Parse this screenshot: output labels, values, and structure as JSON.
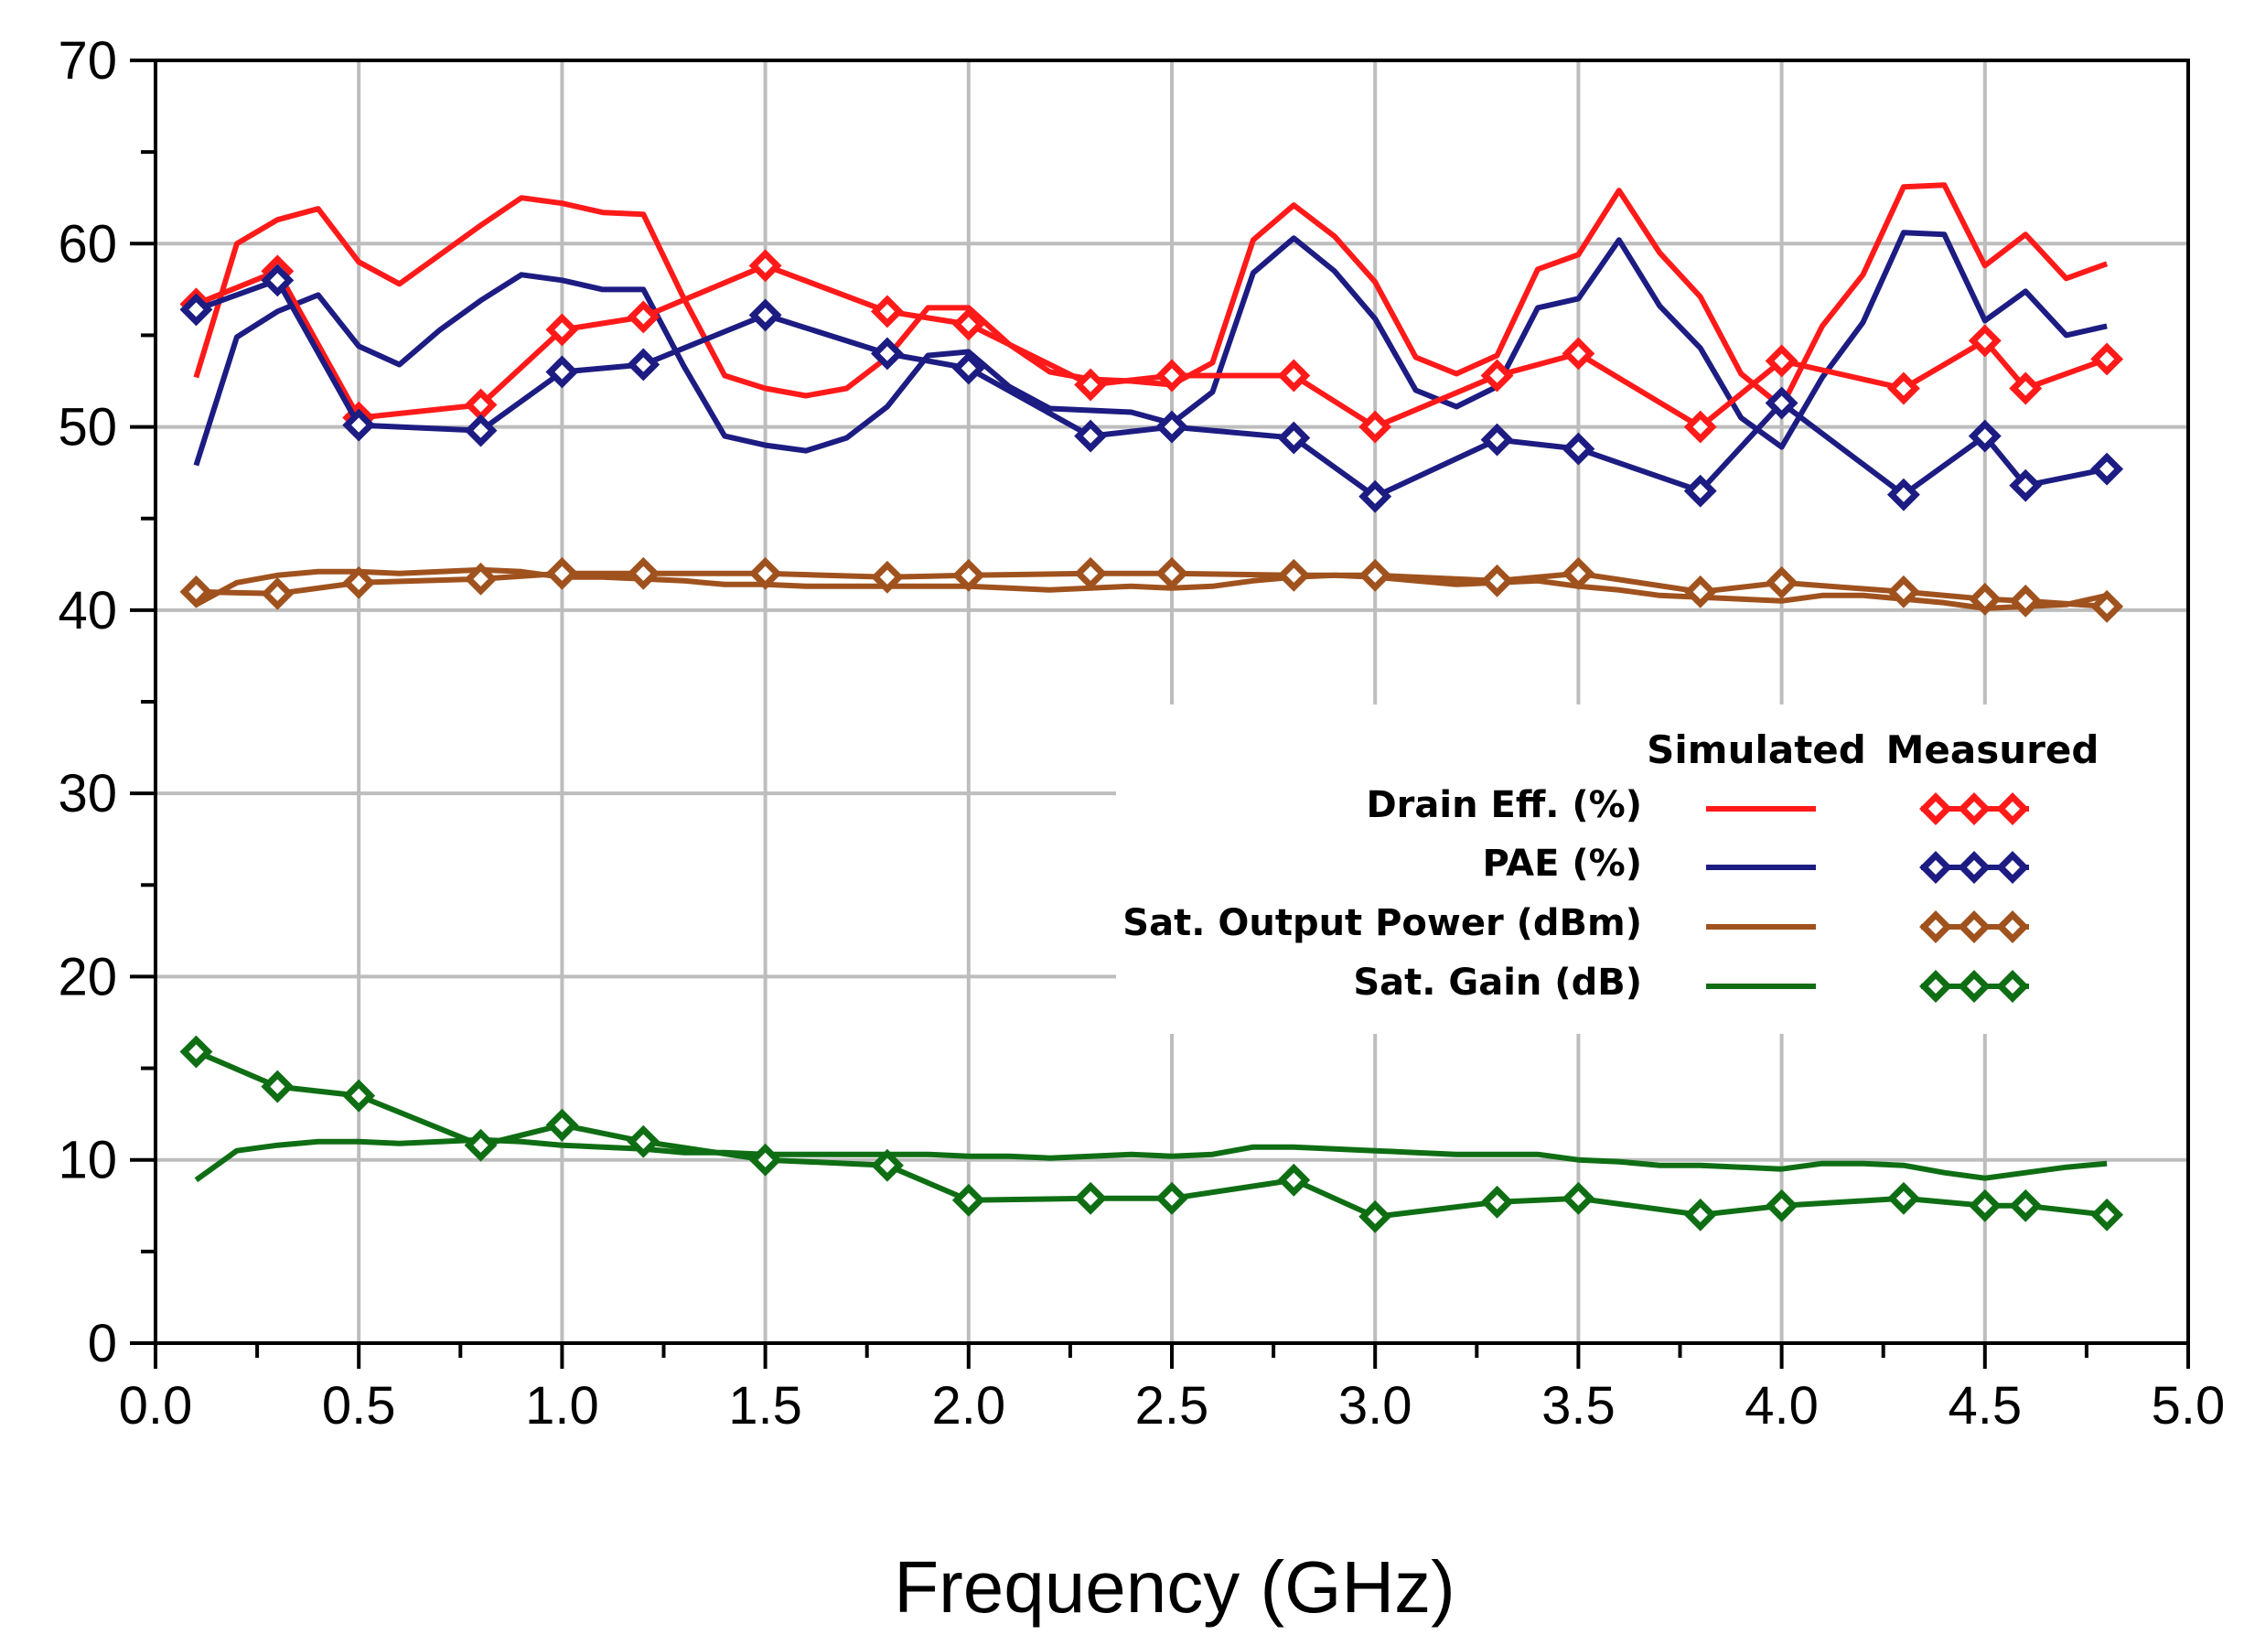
{
  "colors": {
    "drain": "#ff1a1a",
    "pae": "#1c1c82",
    "pout": "#a0521e",
    "gain": "#0f6e14",
    "grid": "#bdbdbd",
    "axis": "#000000",
    "background": "#ffffff"
  },
  "chart_data": {
    "type": "line",
    "title": "",
    "xlabel": "Frequency (GHz)",
    "ylabel": "",
    "xlim": [
      0.0,
      5.0
    ],
    "ylim": [
      0,
      70
    ],
    "xticks": [
      "0.0",
      "0.5",
      "1.0",
      "1.5",
      "2.0",
      "2.5",
      "3.0",
      "3.5",
      "4.0",
      "4.5",
      "5.0"
    ],
    "yticks": [
      "0",
      "10",
      "20",
      "30",
      "40",
      "50",
      "60",
      "70"
    ],
    "grid": true,
    "legend": {
      "placement": "right-middle",
      "column_simulated": "Simulated",
      "column_measured": "Measured",
      "entries": [
        {
          "label": "Drain Eff. (%)",
          "color_key": "drain"
        },
        {
          "label": "PAE (%)",
          "color_key": "pae"
        },
        {
          "label": "Sat. Output Power (dBm)",
          "color_key": "pout"
        },
        {
          "label": "Sat. Gain (dB)",
          "color_key": "gain"
        }
      ]
    },
    "simulated_x": [
      0.1,
      0.2,
      0.3,
      0.4,
      0.5,
      0.6,
      0.7,
      0.8,
      0.9,
      1.0,
      1.1,
      1.2,
      1.3,
      1.4,
      1.5,
      1.6,
      1.7,
      1.8,
      1.9,
      2.0,
      2.1,
      2.2,
      2.3,
      2.4,
      2.5,
      2.6,
      2.7,
      2.8,
      2.9,
      3.0,
      3.1,
      3.2,
      3.3,
      3.4,
      3.5,
      3.6,
      3.7,
      3.8,
      3.9,
      4.0,
      4.1,
      4.2,
      4.3,
      4.4,
      4.5,
      4.6,
      4.7,
      4.8
    ],
    "measured_x": [
      0.1,
      0.3,
      0.5,
      0.8,
      1.0,
      1.2,
      1.5,
      1.8,
      2.0,
      2.3,
      2.5,
      2.8,
      3.0,
      3.3,
      3.5,
      3.8,
      4.0,
      4.3,
      4.5,
      4.6,
      4.8
    ],
    "series": [
      {
        "name": "Drain Eff. (%) Simulated",
        "color_key": "drain",
        "kind": "simulated",
        "values": [
          52.7,
          60.0,
          61.3,
          61.9,
          59.0,
          57.8,
          59.4,
          61.0,
          62.5,
          62.2,
          61.7,
          61.6,
          57.0,
          52.8,
          52.1,
          51.7,
          52.1,
          53.8,
          56.5,
          56.5,
          54.5,
          53.0,
          52.6,
          52.5,
          52.3,
          53.5,
          60.2,
          62.1,
          60.4,
          57.9,
          53.8,
          52.9,
          53.9,
          58.6,
          59.4,
          62.9,
          59.5,
          57.1,
          52.9,
          51.1,
          55.5,
          58.3,
          63.1,
          63.2,
          58.8,
          60.5,
          58.1,
          58.9
        ]
      },
      {
        "name": "PAE (%) Simulated",
        "color_key": "pae",
        "kind": "simulated",
        "values": [
          47.9,
          54.9,
          56.3,
          57.2,
          54.4,
          53.4,
          55.3,
          56.9,
          58.3,
          58.0,
          57.5,
          57.5,
          53.3,
          49.5,
          49.0,
          48.7,
          49.4,
          51.1,
          53.9,
          54.1,
          52.2,
          51.0,
          50.9,
          50.8,
          50.2,
          51.9,
          58.4,
          60.3,
          58.5,
          55.9,
          52.0,
          51.1,
          52.2,
          56.5,
          57.0,
          60.2,
          56.6,
          54.3,
          50.5,
          48.9,
          52.7,
          55.7,
          60.6,
          60.5,
          55.8,
          57.4,
          55.0,
          55.5
        ]
      },
      {
        "name": "Sat. Output Power (dBm) Simulated",
        "color_key": "pout",
        "kind": "simulated",
        "values": [
          40.3,
          41.5,
          41.9,
          42.1,
          42.1,
          42.0,
          42.1,
          42.2,
          42.1,
          41.8,
          41.8,
          41.7,
          41.6,
          41.4,
          41.4,
          41.3,
          41.3,
          41.3,
          41.3,
          41.3,
          41.2,
          41.1,
          41.2,
          41.3,
          41.2,
          41.3,
          41.6,
          41.8,
          41.9,
          41.8,
          41.6,
          41.4,
          41.5,
          41.6,
          41.3,
          41.1,
          40.8,
          40.7,
          40.6,
          40.5,
          40.8,
          40.8,
          40.6,
          40.4,
          40.1,
          40.2,
          40.3,
          40.8
        ]
      },
      {
        "name": "Sat. Gain (dB) Simulated",
        "color_key": "gain",
        "kind": "simulated",
        "values": [
          8.9,
          10.5,
          10.8,
          11.0,
          11.0,
          10.9,
          11.0,
          11.1,
          11.0,
          10.8,
          10.7,
          10.6,
          10.4,
          10.4,
          10.3,
          10.3,
          10.3,
          10.3,
          10.3,
          10.2,
          10.2,
          10.1,
          10.2,
          10.3,
          10.2,
          10.3,
          10.7,
          10.7,
          10.6,
          10.5,
          10.4,
          10.3,
          10.3,
          10.3,
          10.0,
          9.9,
          9.7,
          9.7,
          9.6,
          9.5,
          9.8,
          9.8,
          9.7,
          9.3,
          9.0,
          9.3,
          9.6,
          9.8
        ]
      },
      {
        "name": "Drain Eff. (%) Measured",
        "color_key": "drain",
        "kind": "measured",
        "values": [
          56.7,
          58.5,
          50.5,
          51.2,
          55.3,
          56.0,
          58.8,
          56.3,
          55.6,
          52.3,
          52.8,
          52.8,
          50.0,
          52.8,
          54.0,
          50.0,
          53.6,
          52.1,
          54.7,
          52.1,
          53.7
        ]
      },
      {
        "name": "PAE (%) Measured",
        "color_key": "pae",
        "kind": "measured",
        "values": [
          56.4,
          58.0,
          50.1,
          49.8,
          53.0,
          53.4,
          56.1,
          54.0,
          53.2,
          49.5,
          50.0,
          49.4,
          46.2,
          49.3,
          48.8,
          46.5,
          51.3,
          46.3,
          49.5,
          46.8,
          47.7
        ]
      },
      {
        "name": "Sat. Output Power (dBm) Measured",
        "color_key": "pout",
        "kind": "measured",
        "values": [
          41.0,
          40.9,
          41.5,
          41.7,
          42.0,
          42.0,
          42.0,
          41.8,
          41.9,
          42.0,
          42.0,
          41.9,
          41.9,
          41.6,
          42.0,
          41.0,
          41.5,
          41.0,
          40.6,
          40.5,
          40.2
        ]
      },
      {
        "name": "Sat. Gain (dB) Measured",
        "color_key": "gain",
        "kind": "measured",
        "values": [
          15.9,
          14.0,
          13.5,
          10.8,
          11.9,
          11.0,
          10.0,
          9.7,
          7.8,
          7.9,
          7.9,
          8.9,
          6.9,
          7.7,
          7.9,
          7.0,
          7.5,
          7.9,
          7.5,
          7.5,
          7.0
        ]
      }
    ]
  }
}
